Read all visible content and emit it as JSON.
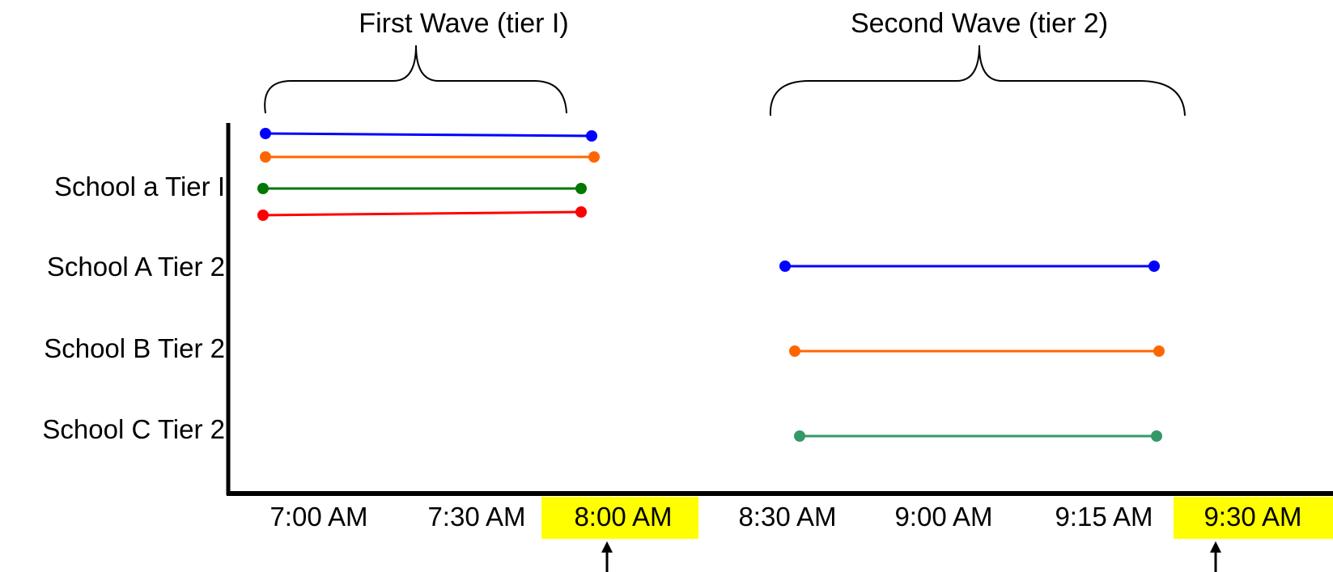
{
  "waves": [
    {
      "title": "First Wave (tier I)"
    },
    {
      "title": "Second Wave (tier 2)"
    }
  ],
  "row_labels": [
    "School a Tier I",
    "School A Tier 2",
    "School B Tier 2",
    "School C Tier 2"
  ],
  "time_ticks": [
    {
      "label": "7:00 AM",
      "highlight": false,
      "arrow": false
    },
    {
      "label": "7:30 AM",
      "highlight": false,
      "arrow": false
    },
    {
      "label": "8:00 AM",
      "highlight": true,
      "arrow": true
    },
    {
      "label": "8:30 AM",
      "highlight": false,
      "arrow": false
    },
    {
      "label": "9:00 AM",
      "highlight": false,
      "arrow": false
    },
    {
      "label": "9:15 AM",
      "highlight": false,
      "arrow": false
    },
    {
      "label": "9:30 AM",
      "highlight": true,
      "arrow": true
    }
  ],
  "segments": [
    {
      "color": "#0000ff"
    },
    {
      "color": "#ff6600"
    },
    {
      "color": "#007700"
    },
    {
      "color": "#ff0000"
    },
    {
      "color": "#0000ff"
    },
    {
      "color": "#ff6600"
    },
    {
      "color": "#339966"
    }
  ],
  "colors": {
    "highlight": "#ffff00",
    "axis": "#000000"
  }
}
